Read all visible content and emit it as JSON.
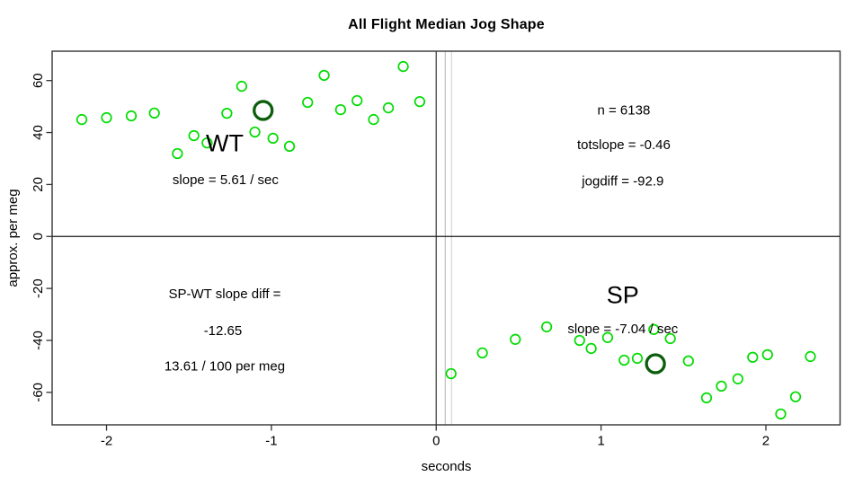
{
  "title": "All Flight Median Jog Shape",
  "chart_data": {
    "type": "scatter",
    "title": "All Flight Median Jog Shape",
    "xlabel": "seconds",
    "ylabel": "approx. per meg",
    "xlim": [
      -2.33,
      2.45
    ],
    "ylim": [
      -72.5,
      71.3
    ],
    "xticks": [
      -2,
      -1,
      0,
      1,
      2
    ],
    "yticks": [
      -60,
      -40,
      -20,
      0,
      20,
      40,
      60
    ],
    "grid": false,
    "legend": "none",
    "point_color": "#00DC00",
    "highlight_color": "#0B5E0B",
    "axis_color": "#333333",
    "series": [
      {
        "name": "WT",
        "points": [
          [
            -2.15,
            45.0
          ],
          [
            -2.0,
            45.7
          ],
          [
            -1.85,
            46.4
          ],
          [
            -1.71,
            47.5
          ],
          [
            -1.57,
            31.9
          ],
          [
            -1.47,
            38.8
          ],
          [
            -1.39,
            36.0
          ],
          [
            -1.27,
            47.4
          ],
          [
            -1.18,
            57.8
          ],
          [
            -1.1,
            40.2
          ],
          [
            -0.99,
            37.8
          ],
          [
            -0.89,
            34.7
          ],
          [
            -0.78,
            51.6
          ],
          [
            -0.68,
            62.0
          ],
          [
            -0.58,
            48.8
          ],
          [
            -0.48,
            52.3
          ],
          [
            -0.38,
            45.0
          ],
          [
            -0.29,
            49.5
          ],
          [
            -0.2,
            65.4
          ],
          [
            -0.1,
            51.9
          ]
        ],
        "highlight": [
          -1.05,
          48.5
        ]
      },
      {
        "name": "SP",
        "points": [
          [
            0.09,
            -52.8
          ],
          [
            0.28,
            -44.8
          ],
          [
            0.48,
            -39.6
          ],
          [
            0.67,
            -34.8
          ],
          [
            0.87,
            -40.0
          ],
          [
            0.94,
            -43.1
          ],
          [
            1.04,
            -38.9
          ],
          [
            1.14,
            -47.6
          ],
          [
            1.22,
            -46.9
          ],
          [
            1.32,
            -35.8
          ],
          [
            1.42,
            -39.3
          ],
          [
            1.53,
            -47.9
          ],
          [
            1.64,
            -62.1
          ],
          [
            1.73,
            -57.6
          ],
          [
            1.83,
            -54.8
          ],
          [
            1.92,
            -46.5
          ],
          [
            2.01,
            -45.5
          ],
          [
            2.09,
            -68.3
          ],
          [
            2.18,
            -61.7
          ],
          [
            2.27,
            -46.2
          ]
        ],
        "highlight": [
          1.33,
          -49.0
        ]
      }
    ],
    "ref_lines": {
      "horizontal": [
        {
          "y": 0,
          "color": "#1a1a1a",
          "width": 1.2
        }
      ],
      "vertical": [
        {
          "x": 0.0,
          "color": "#444444",
          "width": 1.3
        },
        {
          "x": 0.055,
          "color": "#c3c3c3",
          "width": 1.3
        },
        {
          "x": 0.093,
          "color": "#d9d9d9",
          "width": 1.3
        }
      ]
    },
    "annotations": [
      {
        "id": "wt-label",
        "text": "WT",
        "x": -1.283,
        "y": 36.0,
        "size": 27
      },
      {
        "id": "wt-slope",
        "text": "slope = 5.61 / sec",
        "x": -1.278,
        "y": 21.9,
        "size": 15
      },
      {
        "id": "n-count",
        "text": "n = 6138",
        "x": 1.138,
        "y": 48.8,
        "size": 15
      },
      {
        "id": "totslope",
        "text": "totslope = -0.46",
        "x": 1.138,
        "y": 35.4,
        "size": 15
      },
      {
        "id": "jogdiff",
        "text": "jogdiff = -92.9",
        "x": 1.132,
        "y": 21.5,
        "size": 15
      },
      {
        "id": "sp-wt-slope-diff",
        "text": "SP-WT slope diff =",
        "x": -1.283,
        "y": -22.0,
        "size": 15
      },
      {
        "id": "sp-wt-slope-diff-value",
        "text": "-12.65",
        "x": -1.294,
        "y": -36.2,
        "size": 15
      },
      {
        "id": "per-meg-value",
        "text": "13.61 / 100 per meg",
        "x": -1.283,
        "y": -49.7,
        "size": 15
      },
      {
        "id": "sp-label",
        "text": "SP",
        "x": 1.132,
        "y": -22.4,
        "size": 27
      },
      {
        "id": "sp-slope",
        "text": "slope = -7.04 / sec",
        "x": 1.132,
        "y": -35.5,
        "size": 15
      }
    ]
  }
}
